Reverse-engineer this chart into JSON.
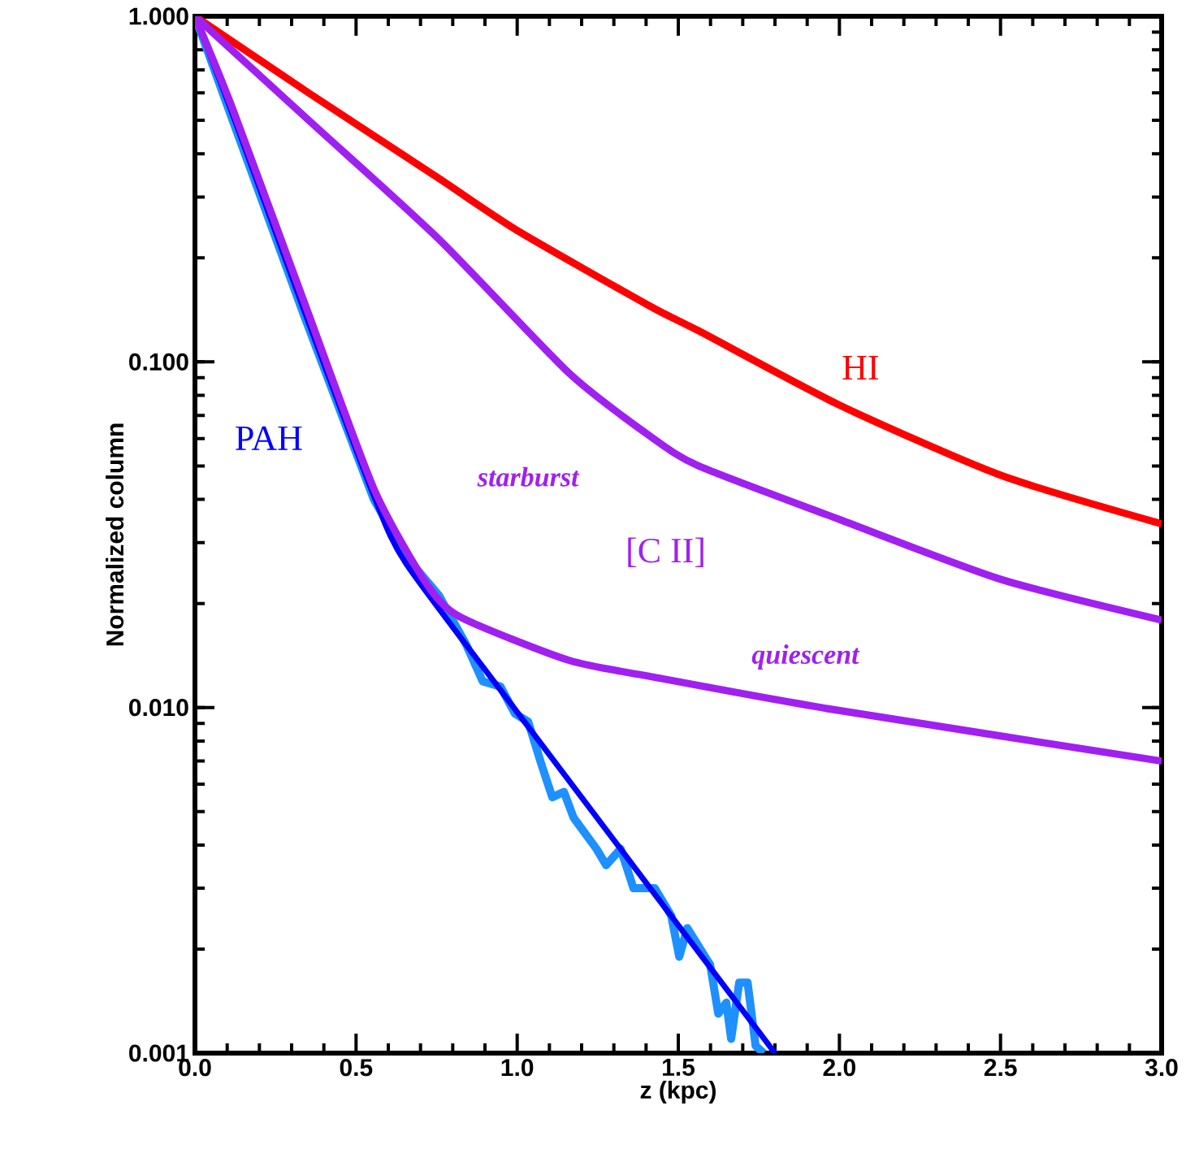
{
  "chart_data": {
    "type": "line",
    "xlabel": "z (kpc)",
    "ylabel": "Normalized column",
    "log": "y",
    "xlim": [
      0,
      3
    ],
    "ylim": [
      0.001,
      1
    ],
    "xticks": [
      {
        "value": 0,
        "label": "0.0"
      },
      0.5,
      {
        "value": 1,
        "label": "1.0"
      },
      1.5,
      {
        "value": 2,
        "label": "2.0"
      },
      2.5,
      {
        "value": 3,
        "label": "3.0"
      }
    ],
    "yticks": [
      {
        "value": 0.001,
        "label": "0.001"
      },
      {
        "value": 0.01,
        "label": "0.010"
      },
      {
        "value": 0.1,
        "label": "0.100"
      },
      {
        "value": 1,
        "label": "1.000"
      }
    ],
    "marker": "none",
    "line_style": "solid",
    "annotations": [
      "[C II]"
    ],
    "series": [
      {
        "color": "#1e90ff",
        "x": [
          0,
          0.117,
          0.34,
          0.555,
          0.66,
          0.757,
          0.842,
          0.893,
          0.948,
          0.993,
          1.034,
          1.074,
          1.109,
          1.145,
          1.175,
          1.246,
          1.276,
          1.321,
          1.361,
          1.427,
          1.478,
          1.503,
          1.528,
          1.599,
          1.624,
          1.649,
          1.664,
          1.689,
          1.715,
          1.74,
          1.765
        ],
        "values": [
          1,
          0.5,
          0.135,
          0.04,
          0.027,
          0.0211,
          0.0152,
          0.0119,
          0.0115,
          0.0096,
          0.0091,
          0.0069,
          0.0055,
          0.0057,
          0.0048,
          0.0039,
          0.0035,
          0.0039,
          0.003,
          0.003,
          0.0025,
          0.0019,
          0.0023,
          0.0018,
          0.0013,
          0.0014,
          0.0011,
          0.0016,
          0.0016,
          0.00105,
          0.001
        ]
      },
      {
        "name": "PAH",
        "color": "#0000ff",
        "x": [
          0,
          0.117,
          0.34,
          0.555,
          0.656,
          1.0,
          1.8
        ],
        "values": [
          1,
          0.52,
          0.14,
          0.041,
          0.026,
          0.0097,
          0.001
        ]
      },
      {
        "name": "HI",
        "color": "#ff0000",
        "x": [
          0,
          0.353,
          0.756,
          1.0,
          1.412,
          1.563,
          2.0,
          2.5,
          3.0
        ],
        "values": [
          1,
          0.6,
          0.34,
          0.24,
          0.145,
          0.123,
          0.075,
          0.047,
          0.034
        ]
      },
      {
        "name": "starburst",
        "color": "#a020f0",
        "x": [
          0,
          0.353,
          0.756,
          1.16,
          1.412,
          1.563,
          2.0,
          2.5,
          3.0
        ],
        "values": [
          1,
          0.5,
          0.227,
          0.093,
          0.061,
          0.05,
          0.035,
          0.0235,
          0.0179
        ]
      },
      {
        "name": "quiescent",
        "color": "#a020f0",
        "x": [
          0,
          0.117,
          0.34,
          0.555,
          0.716,
          0.822,
          1.16,
          1.412,
          1.97,
          3.0
        ],
        "values": [
          1,
          0.54,
          0.148,
          0.043,
          0.023,
          0.0183,
          0.0137,
          0.0123,
          0.0099,
          0.007
        ]
      }
    ]
  }
}
